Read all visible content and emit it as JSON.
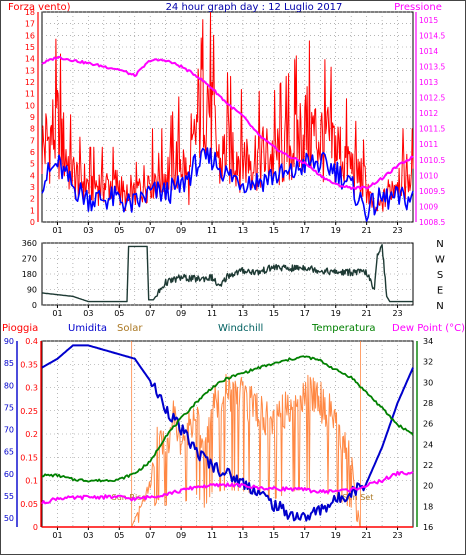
{
  "chart_data": [
    {
      "type": "line",
      "title": "24 hour graph day : 12 Luglio 2017",
      "left_axis_label": "Forza vento)",
      "right_axis_label": "Pressione",
      "left_ylim": [
        0,
        18
      ],
      "right_ylim": [
        1008.5,
        1015.25
      ],
      "left_ticks": [
        0,
        1,
        2,
        3,
        4,
        5,
        6,
        7,
        8,
        9,
        10,
        11,
        12,
        13,
        14,
        15,
        16,
        17,
        18
      ],
      "right_ticks": [
        "1008.5",
        "1009",
        "1009.5",
        "1010",
        "1010.5",
        "1011",
        "1011.5",
        "1012",
        "1012.5",
        "1013",
        "1013.5",
        "1014",
        "1014.5",
        "1015"
      ],
      "x_ticks": [
        "01",
        "03",
        "05",
        "07",
        "09",
        "11",
        "13",
        "15",
        "17",
        "19",
        "21",
        "23"
      ],
      "xlim": [
        0,
        24
      ],
      "grid": true,
      "series": [
        {
          "name": "Forza vento",
          "axis": "left",
          "color": "#ff0000",
          "x": [
            0,
            1,
            2,
            3,
            4,
            5,
            5.5,
            6,
            7,
            8,
            9,
            9.5,
            10,
            10.5,
            11,
            11.5,
            12,
            13,
            14,
            15,
            16,
            17,
            18,
            19,
            20,
            20.5,
            21,
            21.5,
            22,
            23,
            24
          ],
          "y": [
            8,
            10,
            5,
            4,
            4,
            4,
            2,
            3,
            5,
            5,
            7,
            4,
            10,
            16,
            11,
            6,
            8,
            7,
            7,
            7,
            8,
            10,
            9,
            8,
            6,
            5,
            4,
            1,
            2,
            5,
            5
          ]
        },
        {
          "axis": "left",
          "color": "#0000ff",
          "x": [
            0,
            1,
            2,
            3,
            4,
            5,
            5.5,
            6,
            7,
            8,
            9,
            10,
            11,
            12,
            13,
            14,
            15,
            16,
            17,
            18,
            19,
            20,
            21,
            22,
            23,
            24
          ],
          "y": [
            3.5,
            5,
            3,
            2,
            2,
            2,
            1.5,
            1.5,
            2.5,
            2.5,
            3,
            5,
            5.5,
            4,
            3.5,
            3.5,
            4,
            4,
            5,
            5,
            4.5,
            3,
            1,
            2,
            2,
            2
          ]
        },
        {
          "name": "Pressione",
          "axis": "right",
          "color": "#ff00ff",
          "x": [
            0,
            1,
            2,
            3,
            4,
            5,
            6,
            7,
            8,
            9,
            10,
            11,
            12,
            13,
            14,
            15,
            16,
            17,
            18,
            19,
            20,
            21,
            22,
            23,
            24
          ],
          "y": [
            1013.6,
            1013.8,
            1013.7,
            1013.6,
            1013.5,
            1013.4,
            1013.2,
            1013.7,
            1013.7,
            1013.5,
            1013.2,
            1012.8,
            1012.3,
            1011.9,
            1011.3,
            1010.9,
            1010.6,
            1010.4,
            1010.0,
            1009.7,
            1009.6,
            1009.6,
            1009.9,
            1010.3,
            1010.6
          ]
        }
      ]
    },
    {
      "type": "line",
      "right_labels": [
        "N",
        "W",
        "S",
        "E",
        "N"
      ],
      "ylim": [
        0,
        360
      ],
      "left_ticks": [
        0,
        90,
        180,
        270,
        360
      ],
      "x_ticks": [
        "01",
        "03",
        "05",
        "07",
        "09",
        "11",
        "13",
        "15",
        "17",
        "19",
        "21",
        "23"
      ],
      "xlim": [
        0,
        24
      ],
      "grid": true,
      "series": [
        {
          "color": "#1e3a34",
          "x": [
            0,
            1,
            2,
            3,
            4,
            5,
            5.5,
            5.6,
            6.8,
            6.9,
            7.2,
            8,
            9,
            10,
            11,
            11.5,
            12,
            13,
            14,
            15,
            16,
            17,
            18,
            19,
            20,
            21,
            21.5,
            21.7,
            22,
            22.3,
            22.5,
            24
          ],
          "y": [
            70,
            60,
            50,
            20,
            20,
            20,
            20,
            340,
            340,
            30,
            30,
            130,
            160,
            150,
            160,
            100,
            170,
            200,
            190,
            220,
            210,
            220,
            200,
            190,
            190,
            190,
            80,
            300,
            350,
            50,
            20,
            20
          ]
        }
      ]
    },
    {
      "type": "line",
      "left_labels": [
        "Pioggia",
        "Umidita",
        "Solar",
        "Windchill",
        "Temperatura",
        "Dew Point (°C)"
      ],
      "humidity_ylim": [
        48,
        90
      ],
      "humidity_ticks": [
        50,
        55,
        60,
        65,
        70,
        75,
        80,
        85,
        90
      ],
      "rain_ylim": [
        0,
        0.4
      ],
      "rain_ticks": [
        "0",
        "0.05",
        "0.1",
        "0.15",
        "0.2",
        "0.25",
        "0.3",
        "0.35",
        "0.4"
      ],
      "temp_ylim": [
        16,
        34
      ],
      "temp_ticks": [
        16,
        18,
        20,
        22,
        24,
        26,
        28,
        30,
        32,
        34
      ],
      "x_ticks": [
        "01",
        "03",
        "05",
        "07",
        "09",
        "11",
        "13",
        "15",
        "17",
        "19",
        "21",
        "23"
      ],
      "xlim": [
        0,
        24
      ],
      "grid": true,
      "annotations": [
        "Sun Rise",
        "Sun Set"
      ],
      "sunrise_hour": 5.8,
      "sunset_hour": 20.6,
      "series": [
        {
          "name": "Umidita",
          "axis": "humidity",
          "color": "#0000cc",
          "x": [
            0,
            1,
            2,
            3,
            4,
            5,
            6,
            7,
            8,
            9,
            10,
            11,
            12,
            13,
            14,
            15,
            16,
            17,
            18,
            19,
            20,
            21,
            22,
            23,
            24
          ],
          "y": [
            84,
            86,
            89,
            89,
            88,
            87,
            86,
            81,
            75,
            70,
            65,
            62,
            60,
            58,
            56,
            53,
            51,
            50,
            52,
            54,
            56,
            58,
            66,
            76,
            84
          ]
        },
        {
          "name": "Solar",
          "axis": "rain",
          "color": "#ff8844",
          "x": [
            5.8,
            6,
            7,
            7.5,
            8,
            8.5,
            9,
            10,
            10.5,
            11,
            12,
            13,
            14,
            15,
            16,
            17,
            18,
            19,
            19.5,
            20,
            20.3,
            20.6
          ],
          "y": [
            0,
            0.02,
            0.1,
            0.24,
            0.18,
            0.26,
            0.2,
            0.28,
            0.17,
            0.3,
            0.32,
            0.31,
            0.28,
            0.24,
            0.3,
            0.33,
            0.3,
            0.26,
            0.2,
            0.17,
            0.07,
            0
          ]
        },
        {
          "name": "Temperatura",
          "axis": "temp",
          "color": "#008000",
          "x": [
            0,
            1,
            2,
            3,
            4,
            5,
            6,
            7,
            8,
            9,
            10,
            11,
            12,
            13,
            14,
            15,
            16,
            17,
            18,
            19,
            20,
            21,
            22,
            23,
            24
          ],
          "y": [
            21,
            21,
            20.6,
            20.5,
            20.5,
            20.6,
            21.2,
            22.3,
            24.8,
            26.5,
            28.1,
            29.5,
            30.4,
            30.9,
            31.4,
            31.8,
            32.2,
            32.5,
            32.1,
            31.2,
            30.5,
            29,
            27.5,
            25.9,
            25
          ]
        },
        {
          "name": "Dew Point (°C)",
          "axis": "temp",
          "color": "#ff00ff",
          "x": [
            0,
            1,
            2,
            3,
            4,
            5,
            6,
            7,
            8,
            9,
            10,
            11,
            12,
            13,
            14,
            15,
            16,
            17,
            18,
            19,
            20,
            21,
            22,
            23,
            24
          ],
          "y": [
            18.3,
            18.8,
            18.8,
            18.9,
            18.9,
            18.9,
            18.7,
            18.9,
            19.2,
            19.5,
            19.9,
            20,
            20.1,
            20,
            19.8,
            19.7,
            19.7,
            19.6,
            19.4,
            19.5,
            19.6,
            20,
            20.5,
            21.2,
            21.2
          ]
        },
        {
          "name": "Pioggia",
          "axis": "rain",
          "color": "#ff0000",
          "x": [
            0,
            24
          ],
          "y": [
            0,
            0
          ]
        }
      ]
    }
  ],
  "legend_colors": {
    "Pioggia": "#ff0000",
    "Umidita": "#0000cc",
    "Solar": "#aa7722",
    "Windchill": "#006060",
    "Temperatura": "#008000",
    "Dew Point (°C)": "#ff00ff",
    "Forza vento)": "#ff0000",
    "Pressione": "#ff00ff"
  }
}
